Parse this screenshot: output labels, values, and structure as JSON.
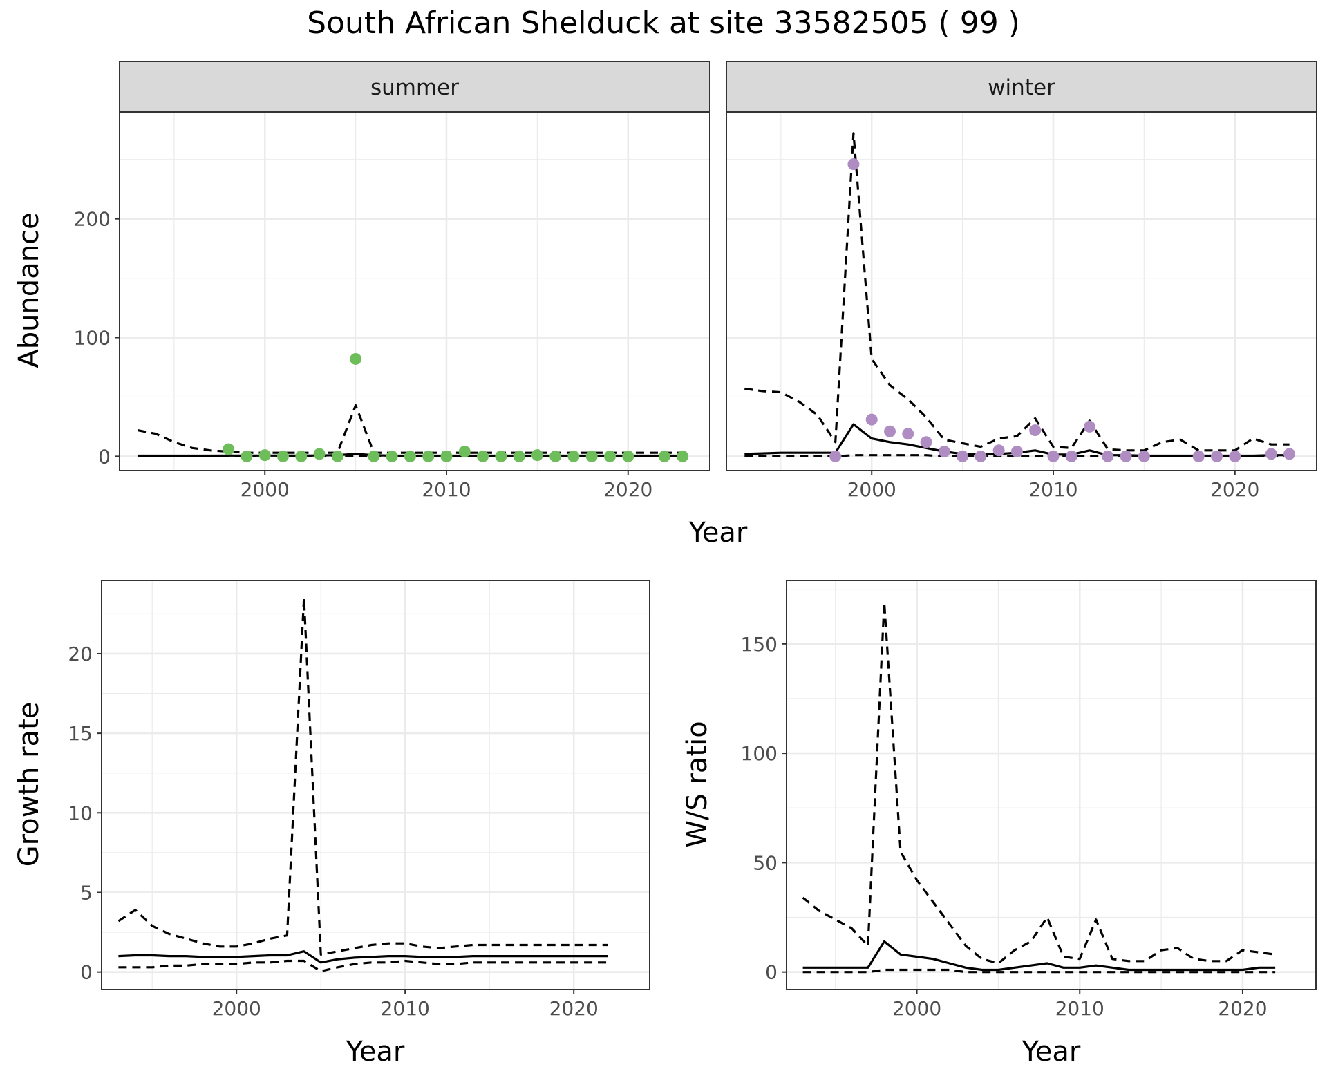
{
  "title": "South African Shelduck at site 33582505 ( 99 )",
  "colors": {
    "summer_points": "#6DBE5A",
    "winter_points": "#AF8DC3",
    "lines": "#000000",
    "grid": "#EBEBEB",
    "strip": "#D9D9D9"
  },
  "chart_data": [
    {
      "type": "line",
      "facet": "summer",
      "xlabel": "Year",
      "ylabel": "Abundance",
      "xlim": [
        1992,
        2024.5
      ],
      "ylim": [
        -12,
        290
      ],
      "xticks": [
        2000,
        2010,
        2020
      ],
      "yticks": [
        0,
        100,
        200
      ],
      "grid": true,
      "line_x": [
        1993,
        1994,
        1995,
        1996,
        1997,
        1998,
        1999,
        2000,
        2001,
        2002,
        2003,
        2004,
        2005,
        2006,
        2007,
        2008,
        2009,
        2010,
        2011,
        2012,
        2013,
        2014,
        2015,
        2016,
        2017,
        2018,
        2019,
        2020,
        2021,
        2022,
        2023
      ],
      "series": [
        {
          "role": "estimate",
          "style": "solid",
          "values": [
            0.5,
            0.5,
            0.5,
            0.5,
            0.5,
            0.6,
            0.6,
            0.6,
            0.6,
            0.6,
            0.7,
            1,
            2,
            1,
            0.5,
            0.5,
            0.5,
            0.5,
            0.5,
            0.5,
            0.5,
            0.5,
            0.5,
            0.5,
            0.5,
            0.5,
            0.5,
            0.5,
            0.5,
            0.5,
            0.5
          ]
        },
        {
          "role": "upper",
          "style": "dashed",
          "values": [
            22,
            19,
            12,
            7,
            5,
            4,
            3,
            3,
            3,
            3,
            3,
            3,
            43,
            3,
            3,
            3,
            3,
            3,
            3,
            3,
            3,
            3,
            3,
            3,
            3,
            3,
            3,
            3,
            3,
            3,
            3
          ]
        },
        {
          "role": "lower",
          "style": "dashed",
          "values": [
            0,
            0,
            0,
            0,
            0,
            0,
            0,
            0,
            0,
            0,
            0,
            0,
            0,
            0,
            0,
            0,
            0,
            0,
            0,
            0,
            0,
            0,
            0,
            0,
            0,
            0,
            0,
            0,
            0,
            0,
            0
          ]
        }
      ],
      "points": {
        "x": [
          1998,
          1999,
          2000,
          2001,
          2002,
          2003,
          2004,
          2005,
          2006,
          2007,
          2008,
          2009,
          2010,
          2011,
          2012,
          2013,
          2014,
          2015,
          2016,
          2017,
          2018,
          2019,
          2020,
          2022,
          2023
        ],
        "y": [
          6,
          0,
          1,
          0,
          0,
          2,
          0,
          82,
          0,
          0,
          0,
          0,
          0,
          4,
          0,
          0,
          0,
          1,
          0,
          0,
          0,
          0,
          0,
          0,
          0
        ]
      }
    },
    {
      "type": "line",
      "facet": "winter",
      "xlabel": "Year",
      "ylabel": "Abundance",
      "xlim": [
        1992,
        2024.5
      ],
      "ylim": [
        -12,
        290
      ],
      "xticks": [
        2000,
        2010,
        2020
      ],
      "yticks": [
        0,
        100,
        200
      ],
      "grid": true,
      "line_x": [
        1993,
        1994,
        1995,
        1996,
        1997,
        1998,
        1999,
        2000,
        2001,
        2002,
        2003,
        2004,
        2005,
        2006,
        2007,
        2008,
        2009,
        2010,
        2011,
        2012,
        2013,
        2014,
        2015,
        2016,
        2017,
        2018,
        2019,
        2020,
        2021,
        2022,
        2023
      ],
      "series": [
        {
          "role": "estimate",
          "style": "solid",
          "values": [
            2,
            2.5,
            3,
            3,
            3,
            3,
            27,
            15,
            12,
            10,
            7,
            4,
            2,
            1.5,
            2,
            3,
            5,
            1.5,
            1.5,
            5,
            1,
            1,
            0.5,
            0.5,
            0.5,
            0.5,
            0.5,
            0.5,
            0.5,
            1,
            1
          ]
        },
        {
          "role": "upper",
          "style": "dashed",
          "values": [
            57,
            55,
            54,
            46,
            35,
            12,
            272,
            82,
            60,
            48,
            33,
            14,
            11,
            8,
            15,
            17,
            32,
            8,
            7,
            30,
            6,
            5,
            5,
            12,
            14,
            5,
            5,
            5,
            15,
            10,
            10
          ]
        },
        {
          "role": "lower",
          "style": "dashed",
          "values": [
            0,
            0,
            0,
            0,
            0,
            0,
            1,
            1,
            1,
            1,
            1,
            0,
            0,
            0,
            0,
            0,
            0,
            0,
            0,
            0,
            0,
            0,
            0,
            0,
            0,
            0,
            0,
            0,
            0,
            0,
            0
          ]
        }
      ],
      "points": {
        "x": [
          1998,
          1999,
          2000,
          2001,
          2002,
          2003,
          2004,
          2005,
          2006,
          2007,
          2008,
          2009,
          2010,
          2011,
          2012,
          2013,
          2014,
          2015,
          2018,
          2019,
          2020,
          2022,
          2023
        ],
        "y": [
          0,
          246,
          31,
          21,
          19,
          12,
          4,
          0,
          0,
          5,
          4,
          22,
          0,
          0,
          25,
          0,
          0,
          0,
          0,
          0,
          0,
          2,
          2
        ]
      }
    },
    {
      "type": "line",
      "facet": "growth",
      "xlabel": "Year",
      "ylabel": "Growth rate",
      "xlim": [
        1992,
        2024.5
      ],
      "ylim": [
        -1.1,
        24.6
      ],
      "xticks": [
        2000,
        2010,
        2020
      ],
      "yticks": [
        0,
        5,
        10,
        15,
        20
      ],
      "grid": true,
      "line_x": [
        1993,
        1994,
        1995,
        1996,
        1997,
        1998,
        1999,
        2000,
        2001,
        2002,
        2003,
        2004,
        2005,
        2006,
        2007,
        2008,
        2009,
        2010,
        2011,
        2012,
        2013,
        2014,
        2015,
        2016,
        2017,
        2018,
        2019,
        2020,
        2021,
        2022
      ],
      "series": [
        {
          "role": "estimate",
          "style": "solid",
          "values": [
            1.0,
            1.05,
            1.05,
            1.0,
            1.0,
            0.95,
            0.95,
            0.95,
            1.0,
            1.05,
            1.05,
            1.3,
            0.6,
            0.8,
            0.9,
            0.95,
            1.0,
            1.0,
            0.95,
            0.95,
            0.95,
            1.0,
            1.0,
            1.0,
            1.0,
            1.0,
            1.0,
            1.0,
            1.0,
            1.0
          ]
        },
        {
          "role": "upper",
          "style": "dashed",
          "values": [
            3.2,
            3.9,
            2.9,
            2.4,
            2.1,
            1.8,
            1.6,
            1.6,
            1.8,
            2.1,
            2.3,
            23.5,
            1.1,
            1.3,
            1.5,
            1.7,
            1.8,
            1.8,
            1.6,
            1.5,
            1.6,
            1.7,
            1.7,
            1.7,
            1.7,
            1.7,
            1.7,
            1.7,
            1.7,
            1.7
          ]
        },
        {
          "role": "lower",
          "style": "dashed",
          "values": [
            0.3,
            0.3,
            0.3,
            0.4,
            0.4,
            0.5,
            0.5,
            0.5,
            0.6,
            0.6,
            0.7,
            0.7,
            0.05,
            0.3,
            0.5,
            0.6,
            0.6,
            0.7,
            0.6,
            0.5,
            0.5,
            0.6,
            0.6,
            0.6,
            0.6,
            0.6,
            0.6,
            0.6,
            0.6,
            0.6
          ]
        }
      ]
    },
    {
      "type": "line",
      "facet": "ratio",
      "xlabel": "Year",
      "ylabel": "W/S ratio",
      "xlim": [
        1992,
        2024.5
      ],
      "ylim": [
        -8,
        179
      ],
      "xticks": [
        2000,
        2010,
        2020
      ],
      "yticks": [
        0,
        50,
        100,
        150
      ],
      "grid": true,
      "line_x": [
        1993,
        1994,
        1995,
        1996,
        1997,
        1998,
        1999,
        2000,
        2001,
        2002,
        2003,
        2004,
        2005,
        2006,
        2007,
        2008,
        2009,
        2010,
        2011,
        2012,
        2013,
        2014,
        2015,
        2016,
        2017,
        2018,
        2019,
        2020,
        2021,
        2022
      ],
      "series": [
        {
          "role": "estimate",
          "style": "solid",
          "values": [
            2,
            2,
            2,
            2,
            2,
            14,
            8,
            7,
            6,
            4,
            2,
            1,
            1,
            2,
            3,
            4,
            2,
            2,
            3,
            2,
            1,
            1,
            1,
            1,
            1,
            1,
            1,
            1,
            2,
            2
          ]
        },
        {
          "role": "upper",
          "style": "dashed",
          "values": [
            34,
            28,
            24,
            20,
            12,
            169,
            55,
            42,
            32,
            22,
            12,
            6,
            4,
            10,
            14,
            25,
            7,
            6,
            24,
            6,
            5,
            5,
            10,
            11,
            6,
            5,
            5,
            10,
            9,
            8
          ]
        },
        {
          "role": "lower",
          "style": "dashed",
          "values": [
            0,
            0,
            0,
            0,
            0,
            1,
            1,
            1,
            1,
            1,
            0,
            0,
            0,
            0,
            0,
            0,
            0,
            0,
            0,
            0,
            0,
            0,
            0,
            0,
            0,
            0,
            0,
            0,
            0,
            0
          ]
        }
      ]
    }
  ],
  "facets": {
    "summer_label": "summer",
    "winter_label": "winter"
  },
  "labels": {
    "abundance_ylabel": "Abundance",
    "top_xlabel": "Year",
    "growth_ylabel": "Growth rate",
    "growth_xlabel": "Year",
    "ratio_ylabel": "W/S ratio",
    "ratio_xlabel": "Year"
  }
}
